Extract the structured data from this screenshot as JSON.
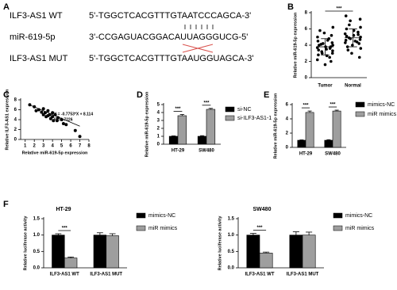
{
  "sequence_panel": {
    "label": "A",
    "rows": [
      {
        "name": "ILF3-AS1 WT",
        "sequence": "5'-TGGCTCACGTTTGTAATCCCAGCA-3'"
      },
      {
        "name": "miR-619-5p",
        "sequence": "3'-CCGAGUACGGACAUUAGGGUCG-5'"
      },
      {
        "name": "ILF3-AS1 MUT",
        "sequence": "5'-TGGCTCACGTTTGTAAUGGUAGCA-3'"
      }
    ]
  },
  "chart_data": [
    {
      "type": "dot",
      "label": "B",
      "y_label": "Relative miR-619-5p expression",
      "categories": [
        "Tumor",
        "Normal"
      ],
      "values": [
        [
          1.6,
          2,
          2.2,
          2.5,
          2.7,
          2.8,
          3,
          3,
          3.2,
          3.3,
          3.4,
          3.5,
          3.6,
          3.7,
          3.8,
          3.8,
          4,
          4,
          4.1,
          4.2,
          4.3,
          4.5,
          4.6,
          4.8,
          5,
          5.2,
          5.5,
          5.8,
          6.2
        ],
        [
          2.5,
          3,
          3.4,
          3.6,
          3.8,
          4,
          4.2,
          4.3,
          4.4,
          4.5,
          4.6,
          4.7,
          4.8,
          4.9,
          5,
          5.1,
          5.2,
          5.3,
          5.4,
          5.6,
          5.8,
          6,
          6.2,
          6.5,
          7,
          7.2,
          7.6
        ]
      ],
      "means": [
        3.8,
        4.9
      ],
      "sds": [
        1.0,
        1.1
      ],
      "color": "#000000",
      "significance": "***",
      "ylim": [
        0,
        8
      ],
      "yticks": [
        0,
        2,
        4,
        6,
        8
      ]
    },
    {
      "type": "scatter",
      "label": "C",
      "x_label": "Relative miR-619-5p expression",
      "y_label": "Relative ILF3-AS1 expression",
      "x": [
        1.5,
        2,
        2.2,
        2.5,
        2.8,
        3,
        3,
        3.2,
        3.3,
        3.5,
        3.5,
        3.7,
        3.8,
        4,
        4,
        4.1,
        4.3,
        4.5,
        4.6,
        5,
        5.2,
        5.5,
        6.5,
        7
      ],
      "y": [
        7,
        6.6,
        5.8,
        6,
        5.5,
        6.2,
        5,
        5.4,
        4.6,
        5.8,
        4.8,
        5,
        4.2,
        4.6,
        5.4,
        3.8,
        5,
        3.8,
        4.4,
        4,
        3.2,
        3,
        1.8,
        0.6
      ],
      "fit": {
        "slope": -0.7753,
        "intercept": 8.114,
        "label": "Y = -0.7753*X + 8.114",
        "r2_label": "R²=0.7226"
      },
      "color": "#000000",
      "xlim": [
        0.5,
        8
      ],
      "xticks": [
        1,
        2,
        3,
        4,
        5,
        6,
        7,
        8
      ],
      "ylim": [
        0,
        8
      ],
      "yticks": [
        0,
        2,
        4,
        6,
        8
      ]
    },
    {
      "type": "bar",
      "label": "D",
      "y_label": "Relative miR-619-5p expression",
      "categories": [
        "HT-29",
        "SW480"
      ],
      "series": [
        {
          "name": "si-NC",
          "color": "#000000",
          "values": [
            1,
            1
          ],
          "errors": [
            0.05,
            0.08
          ]
        },
        {
          "name": "si-ILF3-AS1-1",
          "color": "#9e9e9e",
          "values": [
            3.6,
            4.4
          ],
          "errors": [
            0.15,
            0.12
          ]
        }
      ],
      "significance": [
        "***",
        "***"
      ],
      "ylim": [
        0,
        5
      ],
      "yticks": [
        0,
        1,
        2,
        3,
        4,
        5
      ]
    },
    {
      "type": "bar",
      "label": "E",
      "y_label": "Relative miR-619-5p expression",
      "categories": [
        "HT-29",
        "SW480"
      ],
      "series": [
        {
          "name": "mimics-NC",
          "color": "#000000",
          "values": [
            1,
            1
          ],
          "errors": [
            0.05,
            0.08
          ]
        },
        {
          "name": "miR mimics",
          "color": "#9e9e9e",
          "values": [
            4.9,
            5.1
          ],
          "errors": [
            0.2,
            0.12
          ]
        }
      ],
      "significance": [
        "***",
        "***"
      ],
      "ylim": [
        0,
        6
      ],
      "yticks": [
        0,
        2,
        4,
        6
      ]
    },
    {
      "type": "bar",
      "label": "F",
      "title": "HT-29",
      "y_label": "Relative luciferase activity",
      "categories": [
        "ILF3-AS1 WT",
        "ILF3-AS1 MUT"
      ],
      "series": [
        {
          "name": "mimics-NC",
          "color": "#000000",
          "values": [
            1,
            1
          ],
          "errors": [
            0.04,
            0.07
          ]
        },
        {
          "name": "miR mimics",
          "color": "#9e9e9e",
          "values": [
            0.3,
            0.98
          ],
          "errors": [
            0.03,
            0.06
          ]
        }
      ],
      "significance": [
        "***",
        null
      ],
      "ylim": [
        0,
        1.5
      ],
      "yticks": [
        {
          "value": 0,
          "label": "0.0"
        },
        0.5,
        {
          "value": 1,
          "label": "1.0"
        },
        1.5
      ]
    },
    {
      "type": "bar",
      "title": "SW480",
      "y_label": "Relative luciferase activity",
      "categories": [
        "ILF3-AS1 WT",
        "ILF3-AS1 MUT"
      ],
      "series": [
        {
          "name": "mimics-NC",
          "color": "#000000",
          "values": [
            1,
            1
          ],
          "errors": [
            0.05,
            0.1
          ]
        },
        {
          "name": "miR mimics",
          "color": "#9e9e9e",
          "values": [
            0.45,
            1.0
          ],
          "errors": [
            0.03,
            0.09
          ]
        }
      ],
      "significance": [
        "***",
        null
      ],
      "ylim": [
        0,
        1.5
      ],
      "yticks": [
        {
          "value": 0,
          "label": "0.0"
        },
        0.5,
        {
          "value": 1,
          "label": "1.0"
        },
        1.5
      ]
    }
  ]
}
